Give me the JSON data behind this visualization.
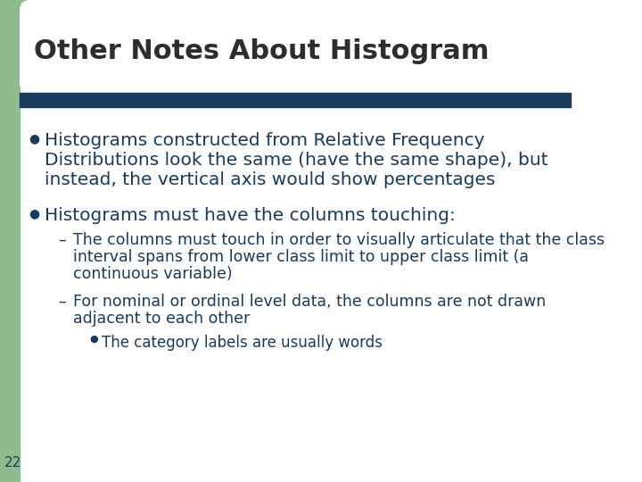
{
  "title": "Other Notes About Histogram",
  "title_color": "#2d2d2d",
  "title_fontsize": 22,
  "bg_color": "#ffffff",
  "left_bar_color": "#8fbc8f",
  "top_bar_color": "#8fbc8f",
  "divider_color": "#1a3a5c",
  "text_color": "#1a3a5c",
  "bullet1_line1": "Histograms constructed from Relative Frequency",
  "bullet1_line2": "Distributions look the same (have the same shape), but",
  "bullet1_line3": "instead, the vertical axis would show percentages",
  "bullet2": "Histograms must have the columns touching:",
  "sub1_line1": "The columns must touch in order to visually articulate that the class",
  "sub1_line2": "interval spans from lower class limit to upper class limit (a",
  "sub1_line3": "continuous variable)",
  "sub2_line1": "For nominal or ordinal level data, the columns are not drawn",
  "sub2_line2": "adjacent to each other",
  "sub2_bullet": "The category labels are usually words",
  "page_num": "22",
  "font_size_main": 14.5,
  "font_size_sub": 12.5,
  "font_size_subsub": 12.0
}
